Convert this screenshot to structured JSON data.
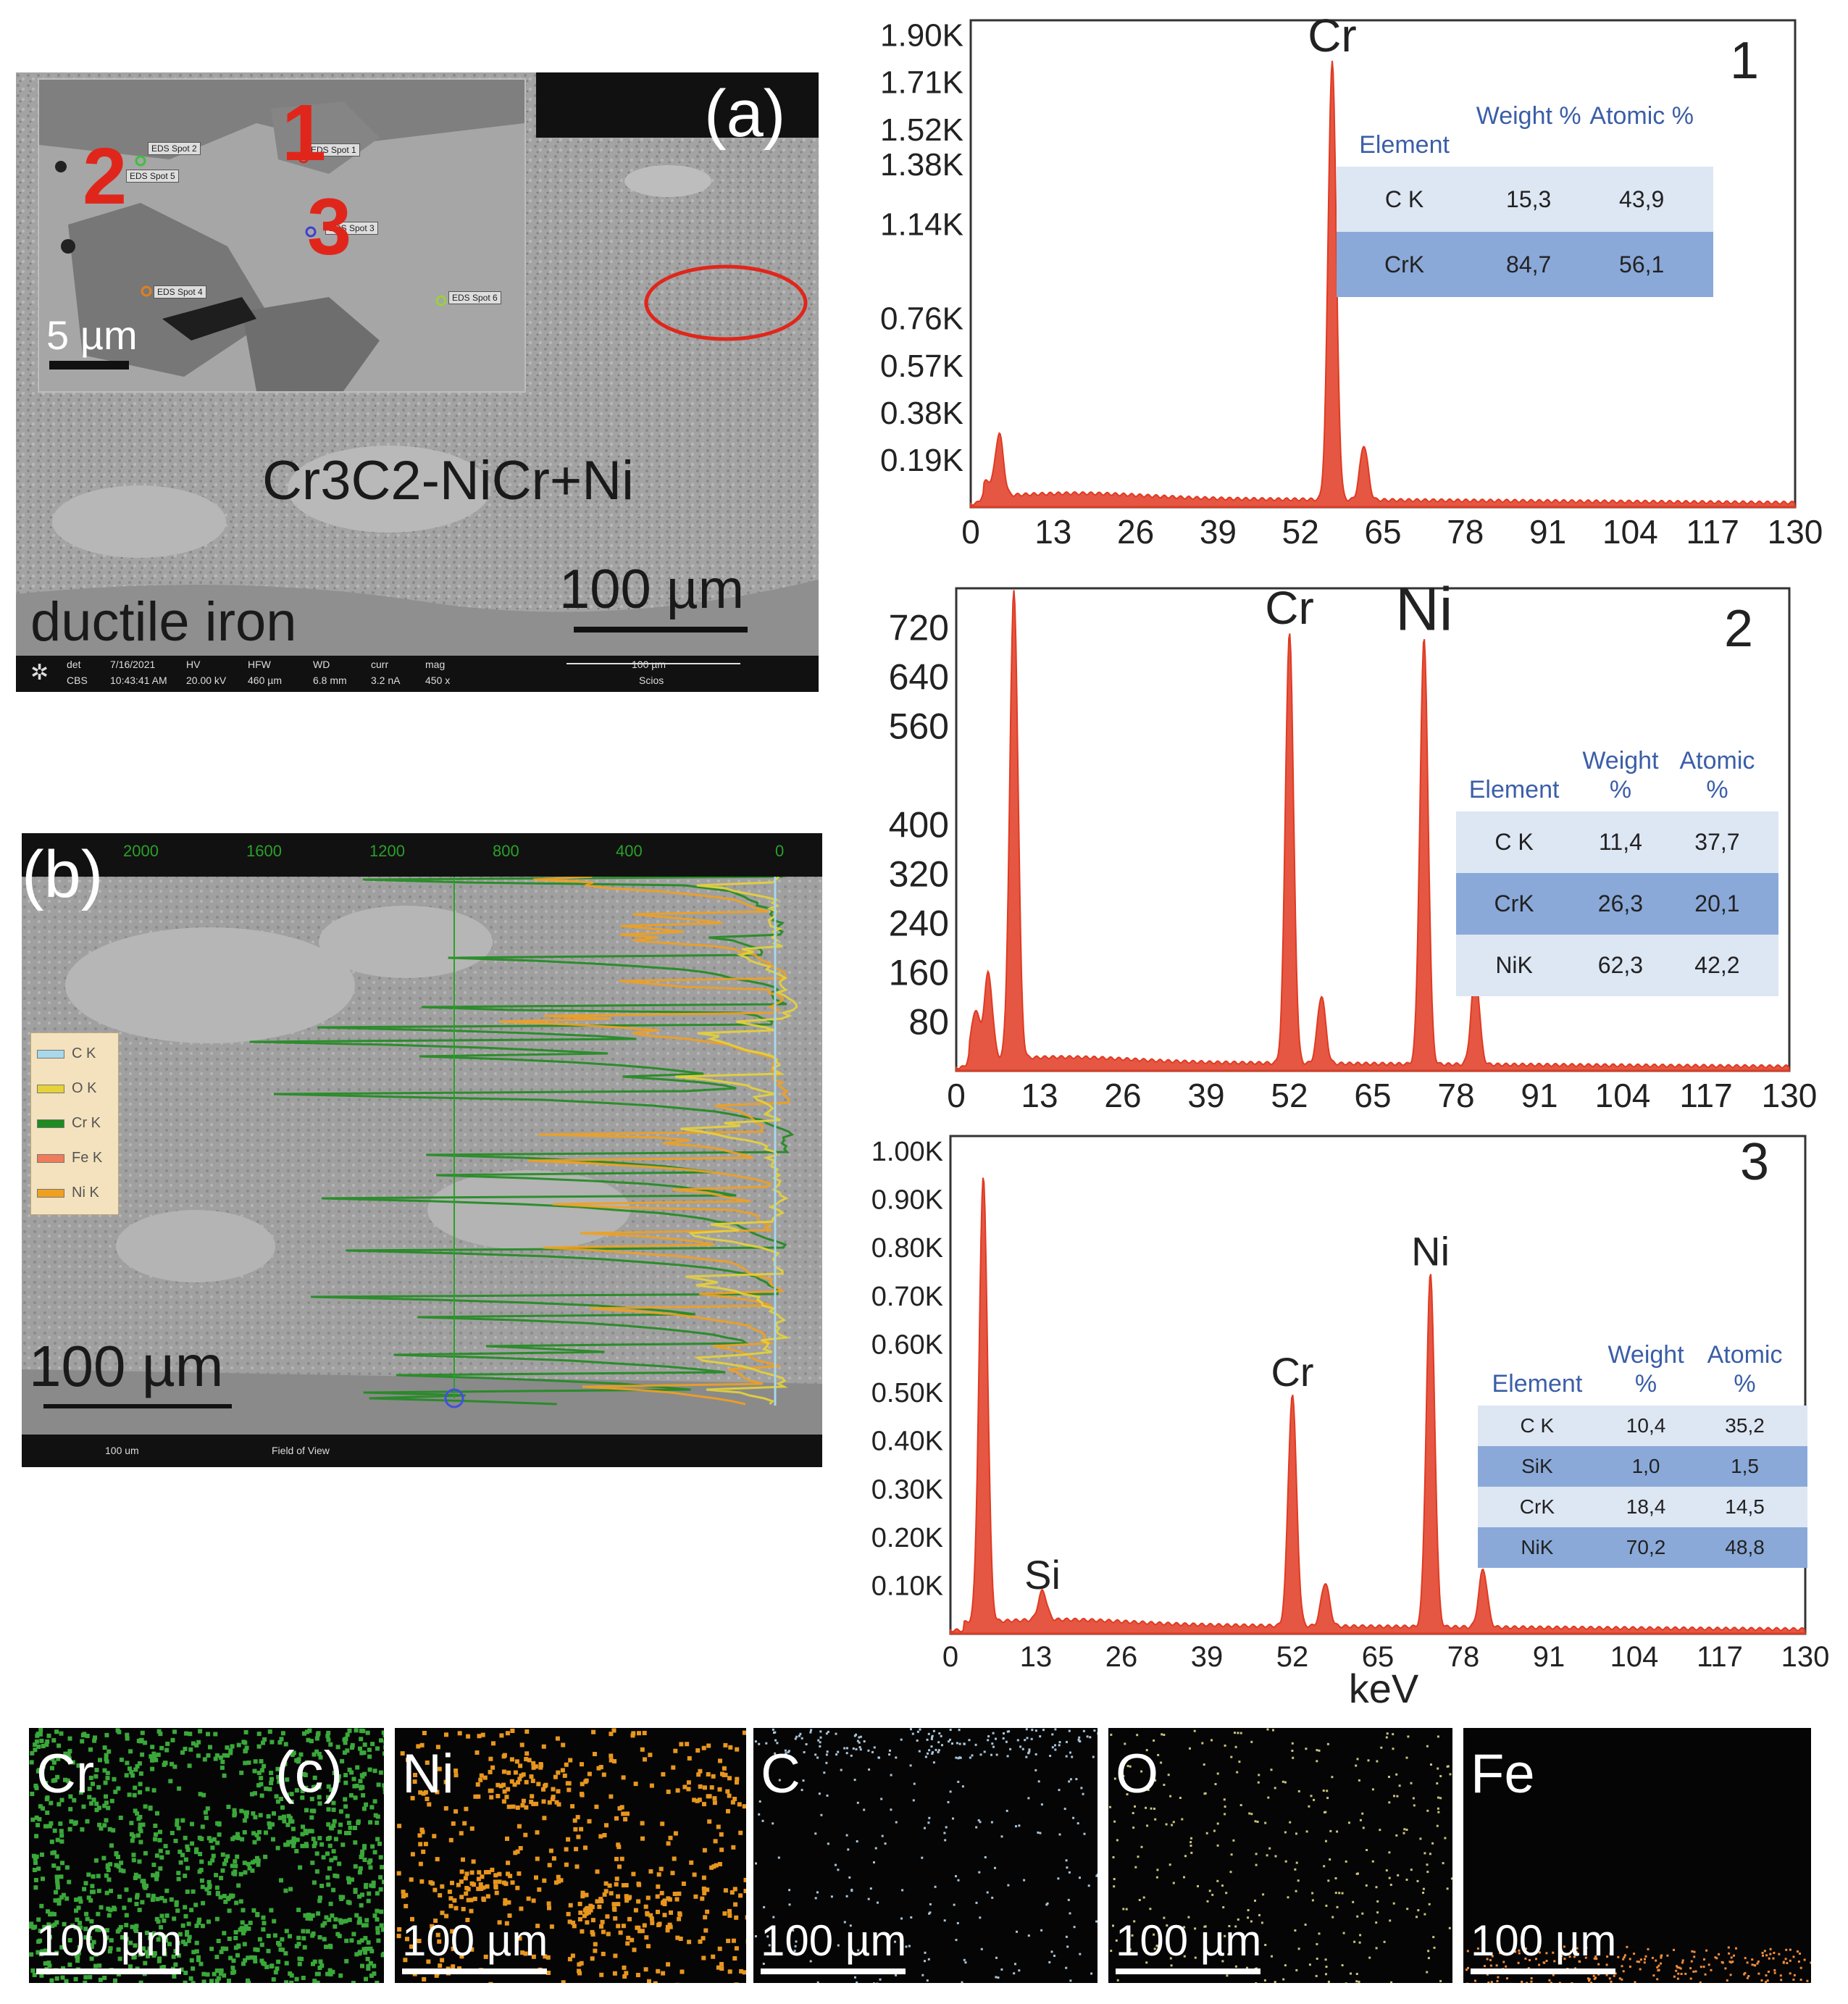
{
  "panel_a": {
    "label": "(a)",
    "material": "Cr3C2-NiCr+Ni",
    "substrate": "ductile iron",
    "scale_main": "100 µm",
    "scale_inset": "5 µm",
    "spot_numbers": [
      "1",
      "2",
      "3"
    ],
    "spot_tags": [
      "EDS Spot 2",
      "EDS Spot 1",
      "EDS Spot 5",
      "EDS Spot 3",
      "EDS Spot 4",
      "EDS Spot 6"
    ],
    "info_bar": [
      "det",
      "7/16/2021",
      "HV",
      "HFW",
      "WD",
      "curr",
      "mag",
      "CBS",
      "10:43:41 AM",
      "20.00 kV",
      "460 µm",
      "6.8 mm",
      "3.2 nA",
      "450 x",
      "100 µm",
      "Scios"
    ]
  },
  "panel_b": {
    "label": "(b)",
    "scale": "100 µm",
    "top_axis": [
      "2000",
      "1600",
      "1200",
      "800",
      "400",
      "0"
    ],
    "legend": [
      {
        "name": "C K",
        "color": "#a8d8ea"
      },
      {
        "name": "O K",
        "color": "#e6d23a"
      },
      {
        "name": "Cr K",
        "color": "#1f8a1f"
      },
      {
        "name": "Fe K",
        "color": "#f07b5a"
      },
      {
        "name": "Ni K",
        "color": "#f0a020"
      }
    ],
    "bottom_bar": [
      "100 um",
      "Field of View"
    ]
  },
  "panel_c": {
    "label": "(c)",
    "maps": [
      {
        "element": "Cr",
        "scale": "100 µm",
        "color": "#3aa83a"
      },
      {
        "element": "Ni",
        "scale": "100 µm",
        "color": "#e8961e"
      },
      {
        "element": "C",
        "scale": "100 µm",
        "color": "#a9c4d8"
      },
      {
        "element": "O",
        "scale": "100 µm",
        "color": "#c9c27a"
      },
      {
        "element": "Fe",
        "scale": "100 µm",
        "color": "#f08c3a"
      }
    ]
  },
  "colors": {
    "spectrum": "#e03a22",
    "table_light": "#dde6f3",
    "table_dark": "#8aa9d9",
    "header_blue": "#3b5ea8"
  },
  "chart_data": [
    {
      "type": "line",
      "title": "1",
      "xlabel": "",
      "ylabel": "",
      "x_ticks": [
        "0",
        "13",
        "26",
        "39",
        "52",
        "65",
        "78",
        "91",
        "104",
        "117",
        "130"
      ],
      "y_ticks": [
        "0.19K",
        "0.38K",
        "0.57K",
        "0.76K",
        "1.14K",
        "1.38K",
        "1.52K",
        "1.71K",
        "1.90K"
      ],
      "peaks": [
        {
          "label": "Cr",
          "x": 57,
          "y": 1770
        }
      ],
      "peak_list": [
        [
          2.5,
          60
        ],
        [
          4.5,
          250
        ],
        [
          57,
          1770
        ],
        [
          62,
          220
        ]
      ],
      "ylim": [
        0,
        1900
      ],
      "xlim": [
        0,
        130
      ],
      "table": {
        "headers": [
          "Element",
          "Weight %",
          "Atomic %"
        ],
        "rows": [
          [
            "C K",
            "15,3",
            "43,9"
          ],
          [
            "CrK",
            "84,7",
            "56,1"
          ]
        ]
      }
    },
    {
      "type": "line",
      "title": "2",
      "xlabel": "",
      "ylabel": "",
      "x_ticks": [
        "0",
        "13",
        "26",
        "39",
        "52",
        "65",
        "78",
        "91",
        "104",
        "117",
        "130"
      ],
      "y_ticks": [
        "80",
        "160",
        "240",
        "320",
        "400",
        "560",
        "640",
        "720"
      ],
      "peaks": [
        {
          "label": "Cr",
          "x": 52,
          "y": 700
        },
        {
          "label": "Ni",
          "x": 73,
          "y": 690
        }
      ],
      "peak_list": [
        [
          3,
          80
        ],
        [
          5,
          140
        ],
        [
          9,
          760
        ],
        [
          52,
          700
        ],
        [
          57,
          110
        ],
        [
          73,
          690
        ],
        [
          81,
          150
        ]
      ],
      "ylim": [
        0,
        760
      ],
      "xlim": [
        0,
        130
      ],
      "table": {
        "headers": [
          "Element",
          "Weight %",
          "Atomic %"
        ],
        "rows": [
          [
            "C K",
            "11,4",
            "37,7"
          ],
          [
            "CrK",
            "26,3",
            "20,1"
          ],
          [
            "NiK",
            "62,3",
            "42,2"
          ]
        ]
      }
    },
    {
      "type": "line",
      "title": "3",
      "xlabel": "keV",
      "ylabel": "",
      "x_ticks": [
        "0",
        "13",
        "26",
        "39",
        "52",
        "65",
        "78",
        "91",
        "104",
        "117",
        "130"
      ],
      "y_ticks": [
        "0.10K",
        "0.20K",
        "0.30K",
        "0.40K",
        "0.50K",
        "0.60K",
        "0.70K",
        "0.80K",
        "0.90K",
        "1.00K"
      ],
      "peaks": [
        {
          "label": "Si",
          "x": 14,
          "y": 60
        },
        {
          "label": "Cr",
          "x": 52,
          "y": 480
        },
        {
          "label": "Ni",
          "x": 73,
          "y": 730
        }
      ],
      "peak_list": [
        [
          5,
          920
        ],
        [
          14,
          60
        ],
        [
          52,
          480
        ],
        [
          57,
          90
        ],
        [
          73,
          730
        ],
        [
          81,
          120
        ]
      ],
      "ylim": [
        0,
        1000
      ],
      "xlim": [
        0,
        130
      ],
      "table": {
        "headers": [
          "Element",
          "Weight %",
          "Atomic %"
        ],
        "rows": [
          [
            "C K",
            "10,4",
            "35,2"
          ],
          [
            "SiK",
            "1,0",
            "1,5"
          ],
          [
            "CrK",
            "18,4",
            "14,5"
          ],
          [
            "NiK",
            "70,2",
            "48,8"
          ]
        ]
      }
    }
  ]
}
